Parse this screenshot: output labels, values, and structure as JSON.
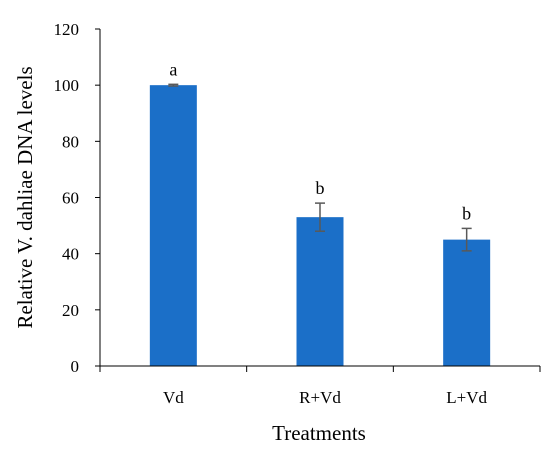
{
  "chart_data": {
    "type": "bar",
    "title": "",
    "xlabel": "Treatments",
    "ylabel": "Relative V. dahliae DNA levels",
    "ylim": [
      0,
      120
    ],
    "y_ticks": [
      0,
      20,
      40,
      60,
      80,
      100,
      120
    ],
    "grid": false,
    "legend": "none",
    "categories": [
      "Vd",
      "R+Vd",
      "L+Vd"
    ],
    "series": [
      {
        "values": [
          100,
          53,
          45
        ],
        "error": [
          0.3,
          5,
          4
        ],
        "significance": [
          "a",
          "b",
          "b"
        ]
      }
    ],
    "bar_color": "#1b6fc8",
    "error_bar_color": "#595959"
  }
}
